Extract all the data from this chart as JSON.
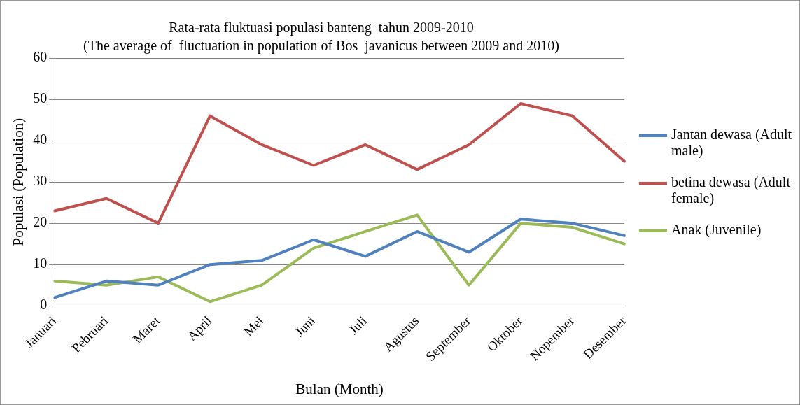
{
  "chart_data": {
    "type": "line",
    "title": "Rata-rata fluktuasi populasi banteng  tahun 2009-2010",
    "subtitle": "(The average of  fluctuation in population of Bos  javanicus between 2009 and 2010)",
    "xlabel": "Bulan (Month)",
    "ylabel": "Populasi (Population)",
    "categories": [
      "Januari",
      "Pebruari",
      "Maret",
      "April",
      "Mei",
      "Juni",
      "Juli",
      "Agustus",
      "September",
      "Oktober",
      "Nopember",
      "Desember"
    ],
    "series": [
      {
        "name": "Jantan dewasa (Adult male)",
        "color": "#4f81bd",
        "values": [
          2,
          6,
          5,
          10,
          11,
          16,
          12,
          18,
          13,
          21,
          20,
          17
        ]
      },
      {
        "name": "betina dewasa (Adult female)",
        "color": "#c0504d",
        "values": [
          23,
          26,
          20,
          46,
          39,
          34,
          39,
          33,
          39,
          49,
          46,
          35
        ]
      },
      {
        "name": "Anak (Juvenile)",
        "color": "#9bbb59",
        "values": [
          6,
          5,
          7,
          1,
          5,
          14,
          18,
          22,
          5,
          20,
          19,
          15
        ]
      }
    ],
    "ylim": [
      0,
      60
    ],
    "yticks": [
      0,
      10,
      20,
      30,
      40,
      50,
      60
    ],
    "grid": "y",
    "legend": "right",
    "marker": "none"
  }
}
